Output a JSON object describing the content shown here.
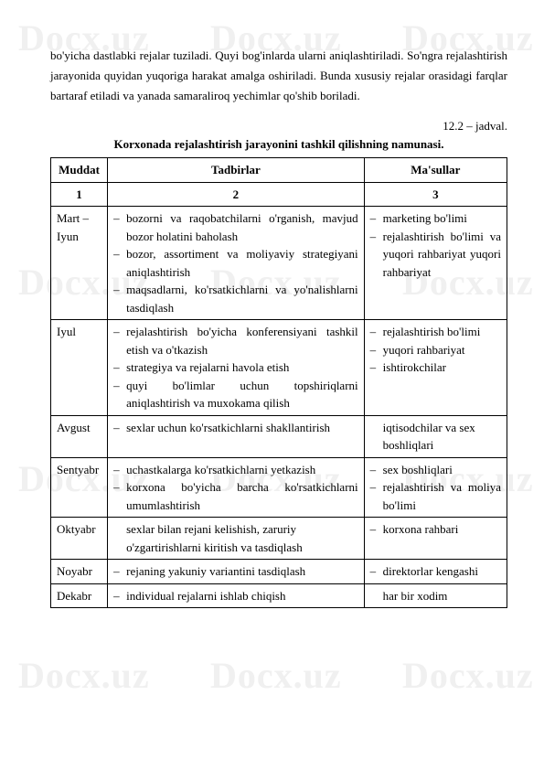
{
  "watermark": "Docx.uz",
  "paragraph": "bo'yicha dastlabki rejalar tuziladi. Quyi bog'inlarda ularni aniqlashtiriladi. So'ngra rejalashtirish jarayonida quyidan yuqoriga harakat amalga oshiriladi. Bunda xususiy rejalar orasidagi farqlar bartaraf etiladi va yanada samaraliroq yechimlar qo'shib boriladi.",
  "jadval_label": "12.2 – jadval.",
  "table_title": "Korxonada rejalashtirish jarayonini tashkil qilishning namunasi.",
  "headers": {
    "col1": "Muddat",
    "col2": "Tadbirlar",
    "col3": "Ma'sullar"
  },
  "numrow": {
    "c1": "1",
    "c2": "2",
    "c3": "3"
  },
  "rows": {
    "r1": {
      "muddat": "Mart – Iyun",
      "t1": "bozorni va raqobatchilarni o'rganish, mavjud bozor holatini baholash",
      "t2": "bozor, assortiment va moliyaviy strategiyani aniqlashtirish",
      "t3": "maqsadlarni, ko'rsatkichlarni va yo'nalishlarni tasdiqlash",
      "m1": "marketing bo'limi",
      "m2": "rejalashtirish bo'limi va yuqori rahbariyat yuqori rahbariyat"
    },
    "r2": {
      "muddat": "Iyul",
      "t1": "rejalashtirish bo'yicha konferensiyani tashkil etish va o'tkazish",
      "t2": "strategiya va rejalarni havola etish",
      "t3": "quyi bo'limlar uchun topshiriqlarni aniqlashtirish va muxokama qilish",
      "m1": "rejalashtirish bo'limi",
      "m2": "yuqori rahbariyat",
      "m3": "ishtirokchilar"
    },
    "r3": {
      "muddat": "Avgust",
      "t1": "sexlar uchun ko'rsatkichlarni shakllantirish",
      "m1": "iqtisodchilar va sex boshliqlari"
    },
    "r4": {
      "muddat": "Sentyabr",
      "t1": "uchastkalarga ko'rsatkichlarni yetkazish",
      "t2": "korxona bo'yicha barcha ko'rsatkichlarni umumlashtirish",
      "m1": "sex boshliqlari",
      "m2": "rejalashtirish va moliya bo'limi"
    },
    "r5": {
      "muddat": "Oktyabr",
      "t1": "sexlar bilan rejani kelishish, zaruriy o'zgartirishlarni kiritish va tasdiqlash",
      "m1": "korxona rahbari"
    },
    "r6": {
      "muddat": "Noyabr",
      "t1": "rejaning yakuniy variantini tasdiqlash",
      "m1": " direktorlar kengashi"
    },
    "r7": {
      "muddat": "Dekabr",
      "t1": "individual rejalarni ishlab chiqish",
      "m1": "har bir xodim"
    }
  }
}
